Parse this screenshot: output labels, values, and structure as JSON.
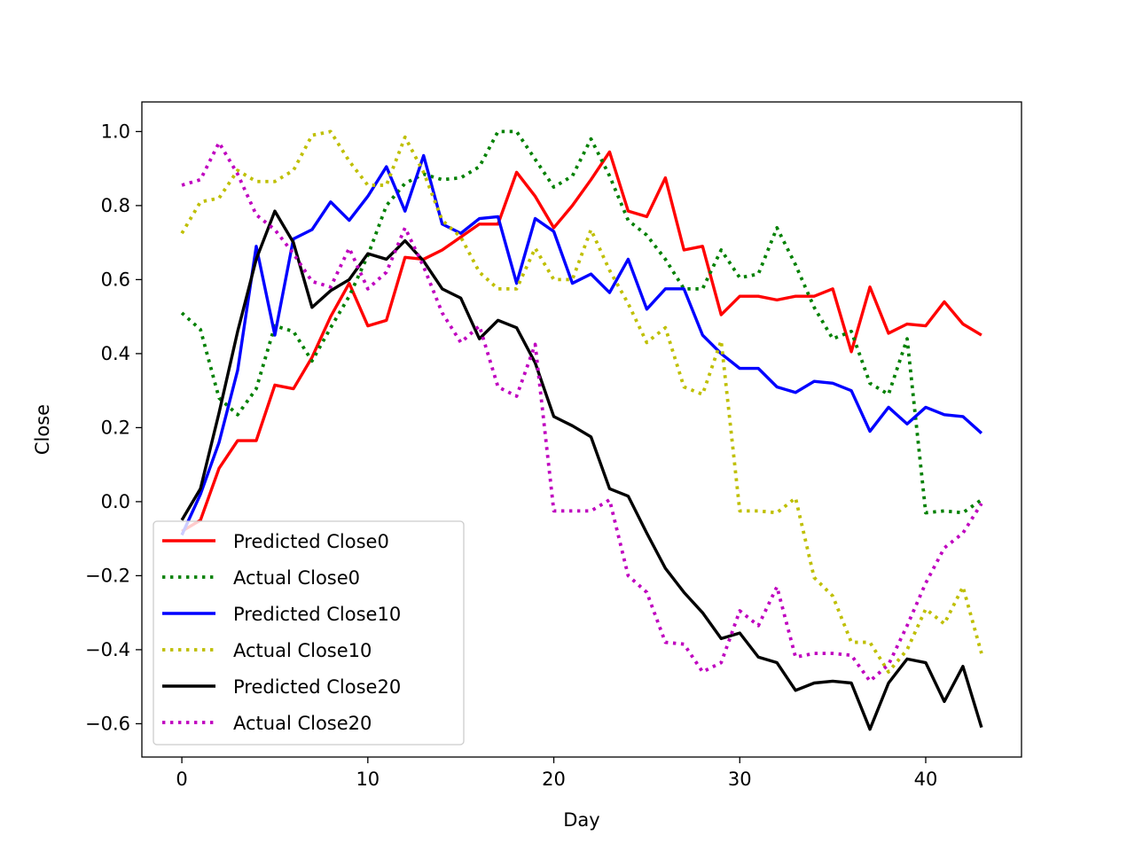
{
  "chart_data": {
    "type": "line",
    "xlabel": "Day",
    "ylabel": "Close",
    "xlim": [
      -2.15,
      45.15
    ],
    "ylim": [
      -0.69,
      1.08
    ],
    "x_ticks": [
      0,
      10,
      20,
      30,
      40
    ],
    "y_ticks": [
      1.0,
      0.8,
      0.6,
      0.4,
      0.2,
      0.0,
      -0.2,
      -0.4,
      -0.6
    ],
    "y_tick_labels": [
      "1.0",
      "0.8",
      "0.6",
      "0.4",
      "0.2",
      "0.0",
      "−0.2",
      "−0.4",
      "−0.6"
    ],
    "legend_position": "lower-left",
    "grid": false,
    "series": [
      {
        "name": "Predicted Close0",
        "color": "#ff0000",
        "style": "solid",
        "values": [
          -0.08,
          -0.05,
          0.09,
          0.165,
          0.165,
          0.315,
          0.305,
          0.39,
          0.5,
          0.59,
          0.475,
          0.49,
          0.66,
          0.655,
          0.68,
          0.715,
          0.75,
          0.75,
          0.89,
          0.825,
          0.74,
          0.8,
          0.87,
          0.945,
          0.785,
          0.77,
          0.875,
          0.68,
          0.69,
          0.505,
          0.555,
          0.555,
          0.545,
          0.555,
          0.555,
          0.575,
          0.405,
          0.58,
          0.455,
          0.48,
          0.475,
          0.54,
          0.48,
          0.45
        ]
      },
      {
        "name": "Actual Close0",
        "color": "#008000",
        "style": "dotted",
        "values": [
          0.51,
          0.465,
          0.28,
          0.235,
          0.305,
          0.475,
          0.46,
          0.38,
          0.47,
          0.555,
          0.665,
          0.8,
          0.86,
          0.885,
          0.87,
          0.875,
          0.905,
          1.0,
          1.0,
          0.925,
          0.85,
          0.88,
          0.98,
          0.88,
          0.76,
          0.72,
          0.655,
          0.575,
          0.575,
          0.68,
          0.605,
          0.615,
          0.74,
          0.64,
          0.525,
          0.44,
          0.46,
          0.32,
          0.29,
          0.44,
          -0.03,
          -0.025,
          -0.03,
          0.005
        ]
      },
      {
        "name": "Predicted Close10",
        "color": "#0000ff",
        "style": "solid",
        "values": [
          -0.09,
          0.02,
          0.16,
          0.355,
          0.69,
          0.45,
          0.71,
          0.735,
          0.81,
          0.76,
          0.825,
          0.905,
          0.785,
          0.935,
          0.75,
          0.725,
          0.765,
          0.77,
          0.59,
          0.765,
          0.73,
          0.59,
          0.615,
          0.565,
          0.655,
          0.52,
          0.575,
          0.575,
          0.45,
          0.4,
          0.36,
          0.36,
          0.31,
          0.295,
          0.325,
          0.32,
          0.3,
          0.19,
          0.255,
          0.21,
          0.255,
          0.235,
          0.23,
          0.185
        ]
      },
      {
        "name": "Actual Close10",
        "color": "#bfbf00",
        "style": "dotted",
        "values": [
          0.725,
          0.81,
          0.82,
          0.895,
          0.865,
          0.865,
          0.895,
          0.99,
          1.0,
          0.92,
          0.855,
          0.855,
          0.985,
          0.89,
          0.76,
          0.715,
          0.62,
          0.575,
          0.575,
          0.685,
          0.6,
          0.6,
          0.735,
          0.625,
          0.535,
          0.43,
          0.47,
          0.31,
          0.29,
          0.435,
          -0.025,
          -0.025,
          -0.03,
          0.01,
          -0.205,
          -0.255,
          -0.38,
          -0.38,
          -0.46,
          -0.4,
          -0.29,
          -0.33,
          -0.23,
          -0.41
        ]
      },
      {
        "name": "Predicted Close20",
        "color": "#000000",
        "style": "solid",
        "values": [
          -0.05,
          0.035,
          0.24,
          0.46,
          0.655,
          0.785,
          0.7,
          0.525,
          0.57,
          0.6,
          0.67,
          0.655,
          0.705,
          0.65,
          0.575,
          0.55,
          0.44,
          0.49,
          0.47,
          0.375,
          0.23,
          0.205,
          0.175,
          0.035,
          0.015,
          -0.085,
          -0.18,
          -0.245,
          -0.3,
          -0.37,
          -0.355,
          -0.42,
          -0.435,
          -0.51,
          -0.49,
          -0.485,
          -0.49,
          -0.615,
          -0.49,
          -0.425,
          -0.435,
          -0.54,
          -0.445,
          -0.61
        ]
      },
      {
        "name": "Actual Close20",
        "color": "#bf00bf",
        "style": "dotted",
        "values": [
          0.855,
          0.87,
          0.97,
          0.885,
          0.775,
          0.735,
          0.67,
          0.595,
          0.58,
          0.685,
          0.575,
          0.62,
          0.74,
          0.635,
          0.51,
          0.43,
          0.475,
          0.31,
          0.285,
          0.425,
          -0.025,
          -0.025,
          -0.025,
          0.005,
          -0.2,
          -0.245,
          -0.38,
          -0.385,
          -0.46,
          -0.435,
          -0.295,
          -0.335,
          -0.23,
          -0.42,
          -0.41,
          -0.41,
          -0.415,
          -0.485,
          -0.44,
          -0.335,
          -0.22,
          -0.125,
          -0.085,
          -0.005
        ]
      }
    ]
  }
}
